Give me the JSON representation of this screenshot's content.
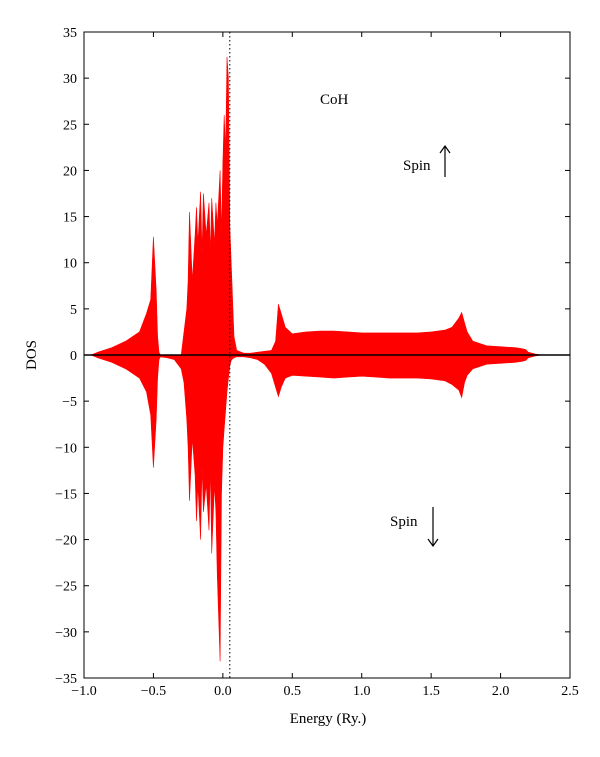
{
  "chart_data": {
    "type": "area",
    "title": "",
    "xlabel": "Energy (Ry.)",
    "ylabel": "DOS",
    "xlim": [
      -1.0,
      2.5
    ],
    "ylim": [
      -35,
      35
    ],
    "xticks": [
      -1.0,
      -0.5,
      0.0,
      0.5,
      1.0,
      1.5,
      2.0,
      2.5
    ],
    "xtick_labels": [
      "−1.0",
      "−0.5",
      "0.0",
      "0.5",
      "1.0",
      "1.5",
      "2.0",
      "2.5"
    ],
    "yticks": [
      35,
      30,
      25,
      20,
      15,
      10,
      5,
      0,
      -5,
      -10,
      -15,
      -20,
      -25,
      -30,
      -35
    ],
    "ytick_labels": [
      "35",
      "30",
      "25",
      "20",
      "15",
      "10",
      "5",
      "0",
      "−5",
      "−10",
      "−15",
      "−20",
      "−25",
      "−30",
      "−35"
    ],
    "fermi_level": 0.05,
    "fill_color": "#ff0000",
    "annotations": {
      "compound": "CoH",
      "spin_up": "Spin",
      "spin_down": "Spin"
    },
    "series": [
      {
        "x": [
          -0.95,
          -0.9,
          -0.8,
          -0.7,
          -0.6,
          -0.55,
          -0.52,
          -0.5,
          -0.48,
          -0.47,
          -0.46,
          -0.45,
          -0.4,
          -0.35,
          -0.3,
          -0.28,
          -0.26,
          -0.25,
          -0.24,
          -0.22,
          -0.2,
          -0.19,
          -0.18,
          -0.16,
          -0.15,
          -0.14,
          -0.12,
          -0.1,
          -0.09,
          -0.08,
          -0.06,
          -0.05,
          -0.04,
          -0.02,
          -0.01,
          0.0,
          0.01,
          0.02,
          0.03,
          0.04,
          0.05,
          0.06,
          0.07,
          0.08,
          0.1,
          0.15,
          0.2,
          0.25,
          0.3,
          0.35,
          0.38,
          0.4,
          0.42,
          0.45,
          0.5,
          0.6,
          0.7,
          0.8,
          0.9,
          1.0,
          1.1,
          1.2,
          1.3,
          1.4,
          1.5,
          1.6,
          1.65,
          1.7,
          1.72,
          1.74,
          1.76,
          1.8,
          1.9,
          2.0,
          2.1,
          2.15,
          2.18,
          2.2,
          2.25,
          2.3
        ],
        "values": [
          0,
          0.3,
          0.8,
          1.5,
          2.5,
          4.5,
          6.0,
          12.8,
          7.0,
          2.0,
          0.3,
          0,
          0,
          0,
          0,
          2.5,
          5.0,
          8.0,
          15.5,
          8.0,
          13.0,
          16.0,
          12.0,
          17.7,
          11.0,
          17.5,
          13.0,
          16.5,
          11.0,
          17.0,
          12.0,
          16.5,
          14.0,
          20.0,
          13.0,
          21.0,
          26.0,
          22.0,
          32.3,
          30.0,
          14.0,
          10.0,
          6.0,
          2.0,
          0.5,
          0.2,
          0.2,
          0.3,
          0.4,
          0.5,
          1.5,
          5.5,
          4.5,
          3.0,
          2.3,
          2.5,
          2.6,
          2.6,
          2.5,
          2.4,
          2.4,
          2.4,
          2.4,
          2.4,
          2.5,
          2.7,
          3.0,
          4.0,
          4.6,
          3.5,
          2.5,
          1.5,
          1.0,
          0.9,
          0.8,
          0.7,
          0.6,
          0.3,
          0.1,
          0
        ]
      },
      {
        "x": [
          -0.95,
          -0.9,
          -0.8,
          -0.7,
          -0.6,
          -0.55,
          -0.52,
          -0.5,
          -0.48,
          -0.47,
          -0.46,
          -0.45,
          -0.4,
          -0.35,
          -0.3,
          -0.28,
          -0.26,
          -0.25,
          -0.24,
          -0.22,
          -0.2,
          -0.19,
          -0.18,
          -0.16,
          -0.15,
          -0.14,
          -0.12,
          -0.1,
          -0.09,
          -0.08,
          -0.06,
          -0.05,
          -0.04,
          -0.02,
          -0.01,
          0.0,
          0.01,
          0.02,
          0.03,
          0.04,
          0.05,
          0.06,
          0.07,
          0.08,
          0.1,
          0.15,
          0.2,
          0.25,
          0.3,
          0.35,
          0.38,
          0.4,
          0.42,
          0.45,
          0.5,
          0.6,
          0.7,
          0.8,
          0.9,
          1.0,
          1.1,
          1.2,
          1.3,
          1.4,
          1.5,
          1.6,
          1.65,
          1.7,
          1.72,
          1.74,
          1.76,
          1.8,
          1.9,
          2.0,
          2.1,
          2.15,
          2.18,
          2.2,
          2.25,
          2.3
        ],
        "values": [
          0,
          -0.3,
          -0.8,
          -1.5,
          -2.5,
          -4.0,
          -6.5,
          -12.2,
          -7.0,
          -2.5,
          -0.5,
          -0.2,
          -0.3,
          -0.5,
          -1.5,
          -3.0,
          -7.0,
          -10.0,
          -15.8,
          -9.0,
          -13.0,
          -18.0,
          -14.0,
          -20.0,
          -12.0,
          -17.0,
          -14.0,
          -19.0,
          -12.0,
          -21.5,
          -14.0,
          -17.0,
          -24.0,
          -33.2,
          -15.0,
          -10.0,
          -8.0,
          -6.0,
          -4.0,
          -2.5,
          -1.2,
          -0.6,
          -0.4,
          -0.3,
          -0.2,
          -0.2,
          -0.3,
          -0.5,
          -1.0,
          -2.0,
          -3.5,
          -4.5,
          -3.5,
          -2.5,
          -2.2,
          -2.3,
          -2.4,
          -2.5,
          -2.4,
          -2.3,
          -2.4,
          -2.5,
          -2.5,
          -2.5,
          -2.6,
          -2.8,
          -3.2,
          -3.8,
          -4.6,
          -3.0,
          -2.2,
          -1.5,
          -1.0,
          -0.9,
          -0.8,
          -0.7,
          -0.6,
          -0.3,
          -0.1,
          0
        ]
      }
    ]
  }
}
